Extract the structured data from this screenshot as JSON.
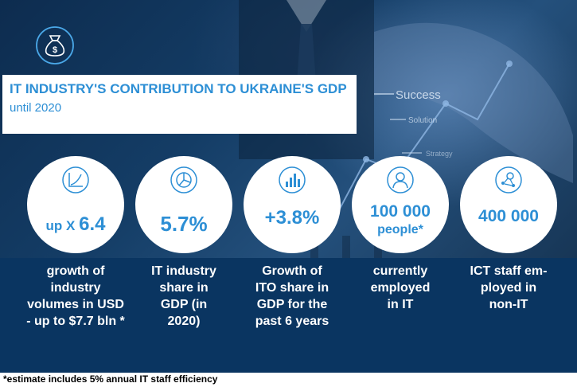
{
  "header": {
    "title": "IT INDUSTRY'S CONTRIBUTION TO UKRAINE'S GDP",
    "subtitle": "until 2020",
    "icon": "money-bag-icon"
  },
  "background_words": [
    "Success",
    "Solution",
    "Strategy"
  ],
  "stats": [
    {
      "prefix": "up X",
      "value": "6.4",
      "icon": "growth-chart-icon",
      "description": "growth of\nindustry\nvolumes in USD\n- up to $7.7 bln *"
    },
    {
      "value": "5.7%",
      "icon": "pie-chart-icon",
      "description": "IT industry\nshare in\nGDP (in\n2020)"
    },
    {
      "value": "+3.8%",
      "icon": "bar-chart-icon",
      "description": "Growth of\nITO share in\nGDP for the\npast 6 years"
    },
    {
      "value": "100 000",
      "unit": "people*",
      "icon": "person-icon",
      "description": "currently\nemployed\nin IT"
    },
    {
      "value": "400 000",
      "icon": "network-user-icon",
      "description": "ICT staff em-\nployed in\nnon-IT"
    }
  ],
  "footnote": "*estimate includes 5% annual IT staff efficiency",
  "colors": {
    "accent": "#2d8fd5",
    "band": "#0a3561",
    "hero": "#143d66"
  }
}
